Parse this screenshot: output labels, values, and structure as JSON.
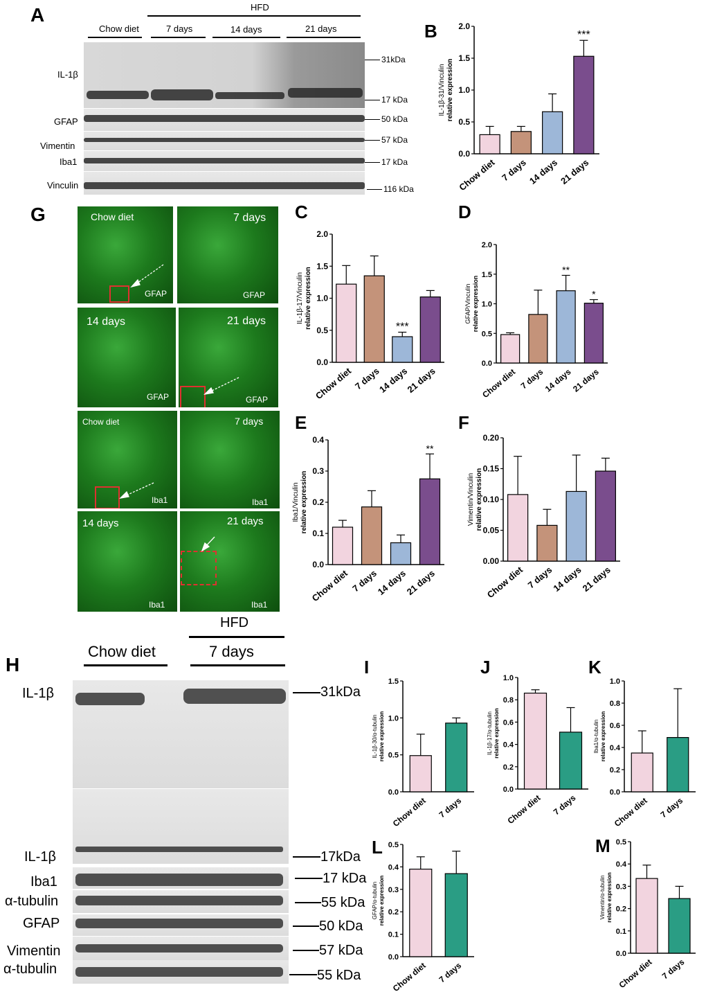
{
  "panel_A": {
    "letter": "A",
    "hfd_label": "HFD",
    "groups": [
      "Chow diet",
      "7 days",
      "14 days",
      "21 days"
    ],
    "rows": [
      "IL-1β",
      "GFAP",
      "Vimentin",
      "Iba1",
      "Vinculin"
    ],
    "markers": [
      "31kDa",
      "17 kDa",
      "50 kDa",
      "57 kDa",
      "17 kDa",
      "116 kDa"
    ]
  },
  "panel_G": {
    "letter": "G",
    "tiles": [
      {
        "title": "Chow diet",
        "stain": "GFAP"
      },
      {
        "title": "7 days",
        "stain": "GFAP"
      },
      {
        "title": "14 days",
        "stain": "GFAP"
      },
      {
        "title": "21 days",
        "stain": "GFAP"
      },
      {
        "title": "Chow diet",
        "stain": "Iba1"
      },
      {
        "title": "7 days",
        "stain": "Iba1"
      },
      {
        "title": "14 days",
        "stain": "Iba1"
      },
      {
        "title": "21 days",
        "stain": "Iba1"
      }
    ]
  },
  "panel_H": {
    "letter": "H",
    "hfd_label": "HFD",
    "groups": [
      "Chow diet",
      "7 days"
    ],
    "rows": [
      "IL-1β",
      "IL-1β",
      "Iba1",
      "α-tubulin",
      "GFAP",
      "Vimentin",
      "α-tubulin"
    ],
    "markers": [
      "31kDa",
      "17kDa",
      "17 kDa",
      "55 kDa",
      "50 kDa",
      "57 kDa",
      "55 kDa"
    ]
  },
  "colors": {
    "chow": "#f2d4df",
    "d7": "#c4937a",
    "d14": "#9db7d8",
    "d21": "#7a4d8d",
    "d7_H": "#2a9d84"
  },
  "chart_data": [
    {
      "panel": "B",
      "type": "bar",
      "categories": [
        "Chow diet",
        "7 days",
        "14 days",
        "21 days"
      ],
      "values": [
        0.3,
        0.35,
        0.66,
        1.53
      ],
      "errors": [
        0.13,
        0.08,
        0.28,
        0.25
      ],
      "sig": [
        "",
        "",
        "",
        "***"
      ],
      "ylabel_1": "IL-1β-31/Vinculin",
      "ylabel_2": "relative expression",
      "ylim": [
        0,
        2.0
      ],
      "ticks": [
        "0.0",
        "0.5",
        "1.0",
        "1.5",
        "2.0"
      ],
      "colors": [
        "#f2d4df",
        "#c4937a",
        "#9db7d8",
        "#7a4d8d"
      ]
    },
    {
      "panel": "C",
      "type": "bar",
      "categories": [
        "Chow diet",
        "7 days",
        "14 days",
        "21 days"
      ],
      "values": [
        1.22,
        1.35,
        0.4,
        1.02
      ],
      "errors": [
        0.29,
        0.31,
        0.07,
        0.1
      ],
      "sig": [
        "",
        "",
        "***",
        ""
      ],
      "ylabel_1": "IL-1β-17/Vinculin",
      "ylabel_2": "relative expression",
      "ylim": [
        0,
        2.0
      ],
      "ticks": [
        "0.0",
        "0.5",
        "1.0",
        "1.5",
        "2.0"
      ],
      "colors": [
        "#f2d4df",
        "#c4937a",
        "#9db7d8",
        "#7a4d8d"
      ]
    },
    {
      "panel": "D",
      "type": "bar",
      "categories": [
        "Chow diet",
        "7 days",
        "14 days",
        "21 days"
      ],
      "values": [
        0.48,
        0.82,
        1.22,
        1.01
      ],
      "errors": [
        0.03,
        0.41,
        0.26,
        0.06
      ],
      "sig": [
        "",
        "",
        "**",
        "*"
      ],
      "ylabel_1": "GFAP/Vinculin",
      "ylabel_2": "relative expression",
      "ylim": [
        0,
        2.0
      ],
      "ticks": [
        "0.0",
        "0.5",
        "1.0",
        "1.5",
        "2.0"
      ],
      "colors": [
        "#f2d4df",
        "#c4937a",
        "#9db7d8",
        "#7a4d8d"
      ]
    },
    {
      "panel": "E",
      "type": "bar",
      "categories": [
        "Chow diet",
        "7 days",
        "14 days",
        "21 days"
      ],
      "values": [
        0.12,
        0.185,
        0.07,
        0.275
      ],
      "errors": [
        0.022,
        0.052,
        0.025,
        0.08
      ],
      "sig": [
        "",
        "",
        "",
        "**"
      ],
      "ylabel_1": "Iba1/Vinculin",
      "ylabel_2": "relative expression",
      "ylim": [
        0,
        0.4
      ],
      "ticks": [
        "0.0",
        "0.1",
        "0.2",
        "0.3",
        "0.4"
      ],
      "colors": [
        "#f2d4df",
        "#c4937a",
        "#9db7d8",
        "#7a4d8d"
      ]
    },
    {
      "panel": "F",
      "type": "bar",
      "categories": [
        "Chow diet",
        "7 days",
        "14 days",
        "21 days"
      ],
      "values": [
        0.108,
        0.058,
        0.113,
        0.146
      ],
      "errors": [
        0.062,
        0.026,
        0.059,
        0.021
      ],
      "sig": [
        "",
        "",
        "",
        ""
      ],
      "ylabel_1": "Vimentin/Vinculin",
      "ylabel_2": "relative expression",
      "ylim": [
        0,
        0.2
      ],
      "ticks": [
        "0.00",
        "0.05",
        "0.10",
        "0.15",
        "0.20"
      ],
      "colors": [
        "#f2d4df",
        "#c4937a",
        "#9db7d8",
        "#7a4d8d"
      ]
    },
    {
      "panel": "I",
      "type": "bar",
      "categories": [
        "Chow diet",
        "7 days"
      ],
      "values": [
        0.49,
        0.93
      ],
      "errors": [
        0.29,
        0.07
      ],
      "sig": [
        "",
        ""
      ],
      "ylabel_1": "IL-1β-30/α-tubulin",
      "ylabel_2": "relative expression",
      "ylim": [
        0,
        1.5
      ],
      "ticks": [
        "0.0",
        "0.5",
        "1.0",
        "1.5"
      ],
      "colors": [
        "#f2d4df",
        "#2a9d84"
      ]
    },
    {
      "panel": "J",
      "type": "bar",
      "categories": [
        "Chow diet",
        "7 days"
      ],
      "values": [
        0.86,
        0.51
      ],
      "errors": [
        0.03,
        0.22
      ],
      "sig": [
        "",
        ""
      ],
      "ylabel_1": "IL-1β-17/α-tubulin",
      "ylabel_2": "relative expression",
      "ylim": [
        0,
        1.0
      ],
      "ticks": [
        "0.0",
        "0.2",
        "0.4",
        "0.6",
        "0.8",
        "1.0"
      ],
      "colors": [
        "#f2d4df",
        "#2a9d84"
      ]
    },
    {
      "panel": "K",
      "type": "bar",
      "categories": [
        "Chow diet",
        "7 days"
      ],
      "values": [
        0.35,
        0.49
      ],
      "errors": [
        0.2,
        0.44
      ],
      "sig": [
        "",
        ""
      ],
      "ylabel_1": "Iba1/α-tubulin",
      "ylabel_2": "relative expression",
      "ylim": [
        0,
        1.0
      ],
      "ticks": [
        "0.0",
        "0.2",
        "0.4",
        "0.6",
        "0.8",
        "1.0"
      ],
      "colors": [
        "#f2d4df",
        "#2a9d84"
      ]
    },
    {
      "panel": "L",
      "type": "bar",
      "categories": [
        "Chow diet",
        "7 days"
      ],
      "values": [
        0.39,
        0.37
      ],
      "errors": [
        0.055,
        0.1
      ],
      "sig": [
        "",
        ""
      ],
      "ylabel_1": "GFAP/α-tubulin",
      "ylabel_2": "relative expression",
      "ylim": [
        0,
        0.5
      ],
      "ticks": [
        "0.0",
        "0.1",
        "0.2",
        "0.3",
        "0.4",
        "0.5"
      ],
      "colors": [
        "#f2d4df",
        "#2a9d84"
      ]
    },
    {
      "panel": "M",
      "type": "bar",
      "categories": [
        "Chow diet",
        "7 days"
      ],
      "values": [
        0.335,
        0.245
      ],
      "errors": [
        0.06,
        0.055
      ],
      "sig": [
        "",
        ""
      ],
      "ylabel_1": "Vimentin/α-tubulin",
      "ylabel_2": "relative expression",
      "ylim": [
        0,
        0.5
      ],
      "ticks": [
        "0.0",
        "0.1",
        "0.2",
        "0.3",
        "0.4",
        "0.5"
      ],
      "colors": [
        "#f2d4df",
        "#2a9d84"
      ]
    }
  ]
}
